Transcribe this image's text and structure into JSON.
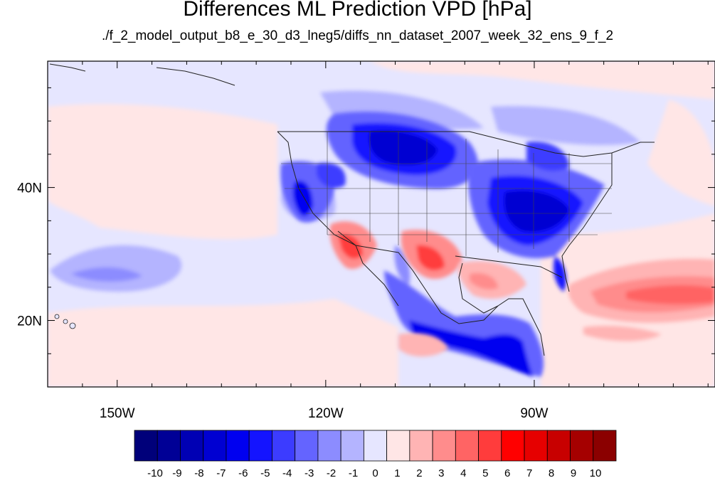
{
  "title": "Differences ML Prediction VPD [hPa]",
  "subtitle": "./f_2_model_output_b8_e_30_d3_lneg5/diffs_nn_dataset_2007_week_32_ens_9_f_2",
  "map": {
    "projection": "cylindrical-equidistant",
    "lon_range": [
      -160,
      -64
    ],
    "lat_range": [
      10,
      59
    ],
    "lon_ticks": [
      {
        "value": -150,
        "label": "150W"
      },
      {
        "value": -120,
        "label": "120W"
      },
      {
        "value": -90,
        "label": "90W"
      }
    ],
    "lat_ticks": [
      {
        "value": 40,
        "label": "40N"
      },
      {
        "value": 20,
        "label": "20N"
      }
    ],
    "field": "VPD difference (hPa)",
    "features": [
      {
        "region": "Northern Great Plains / Montana / Dakotas",
        "anomaly": "strong negative",
        "approx_value": -6
      },
      {
        "region": "Ohio & Tennessee Valleys / Southeast US",
        "anomaly": "strong negative",
        "approx_value": -6
      },
      {
        "region": "California Central Valley / Sierra",
        "anomaly": "strong negative",
        "approx_value": -5
      },
      {
        "region": "Southern Mexico / Central America",
        "anomaly": "strong negative",
        "approx_value": -6
      },
      {
        "region": "Arizona / Sonora",
        "anomaly": "positive",
        "approx_value": 3
      },
      {
        "region": "West Texas / Chihuahua",
        "anomaly": "positive",
        "approx_value": 3
      },
      {
        "region": "Gulf of Mexico",
        "anomaly": "positive",
        "approx_value": 2
      },
      {
        "region": "Western subtropical Atlantic",
        "anomaly": "positive",
        "approx_value": 3
      },
      {
        "region": "Central Pacific near 25N",
        "anomaly": "weak negative",
        "approx_value": -2
      }
    ]
  },
  "colorbar": {
    "labels": [
      "-10",
      "-9",
      "-8",
      "-7",
      "-6",
      "-5",
      "-4",
      "-3",
      "-2",
      "-1",
      "0",
      "1",
      "2",
      "3",
      "4",
      "5",
      "6",
      "7",
      "8",
      "9",
      "10"
    ],
    "colors": [
      "#00007a",
      "#000096",
      "#0000b4",
      "#0000d2",
      "#0000f0",
      "#1414ff",
      "#3c3cff",
      "#6464ff",
      "#8c8cff",
      "#b4b4ff",
      "#e6e6ff",
      "#ffe6e6",
      "#ffb4b4",
      "#ff8c8c",
      "#ff6464",
      "#ff3c3c",
      "#ff0000",
      "#e60000",
      "#c80000",
      "#a50000",
      "#8b0000"
    ]
  }
}
